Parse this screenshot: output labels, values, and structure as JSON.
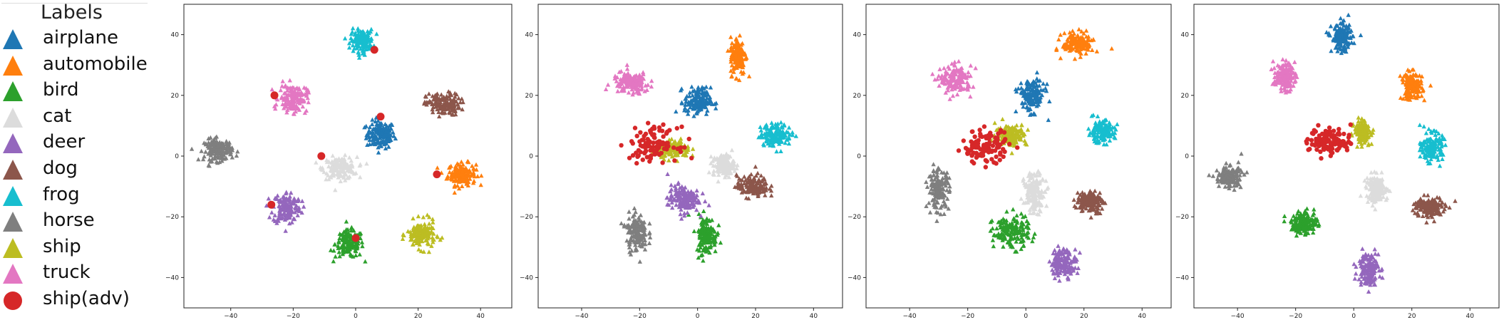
{
  "legend": {
    "title": "Labels",
    "entries": [
      {
        "label": "airplane",
        "color": "#1f77b4",
        "marker": "triangle"
      },
      {
        "label": "automobile",
        "color": "#ff7f0e",
        "marker": "triangle"
      },
      {
        "label": "bird",
        "color": "#2ca02c",
        "marker": "triangle"
      },
      {
        "label": "cat",
        "color": "#dcdcdc",
        "marker": "triangle"
      },
      {
        "label": "deer",
        "color": "#9467bd",
        "marker": "triangle"
      },
      {
        "label": "dog",
        "color": "#8c564b",
        "marker": "triangle"
      },
      {
        "label": "frog",
        "color": "#17becf",
        "marker": "triangle"
      },
      {
        "label": "horse",
        "color": "#7f7f7f",
        "marker": "triangle"
      },
      {
        "label": "ship",
        "color": "#bcbd22",
        "marker": "triangle"
      },
      {
        "label": "truck",
        "color": "#e377c2",
        "marker": "triangle"
      },
      {
        "label": "ship(adv)",
        "color": "#d62728",
        "marker": "circle"
      }
    ]
  },
  "chart_data": [
    {
      "type": "scatter",
      "xlim": [
        -55,
        50
      ],
      "ylim": [
        -50,
        50
      ],
      "xticks": [
        -40,
        -20,
        0,
        20,
        40
      ],
      "xtick_labels": [
        "−40",
        "−20",
        "0",
        "20",
        "40"
      ],
      "yticks": [
        -40,
        -20,
        0,
        20,
        40
      ],
      "ytick_labels": [
        "−40",
        "−20",
        "0",
        "20",
        "40"
      ],
      "clusters": [
        {
          "label": "airplane",
          "center": [
            8,
            7
          ],
          "spread": [
            5,
            5
          ]
        },
        {
          "label": "automobile",
          "center": [
            34,
            -6
          ],
          "spread": [
            5,
            4
          ]
        },
        {
          "label": "bird",
          "center": [
            -2,
            -29
          ],
          "spread": [
            5,
            5
          ]
        },
        {
          "label": "cat",
          "center": [
            -5,
            -4
          ],
          "spread": [
            6,
            4
          ]
        },
        {
          "label": "deer",
          "center": [
            -22,
            -17
          ],
          "spread": [
            5,
            6
          ]
        },
        {
          "label": "dog",
          "center": [
            28,
            17
          ],
          "spread": [
            6,
            4
          ]
        },
        {
          "label": "frog",
          "center": [
            2,
            38
          ],
          "spread": [
            4,
            4
          ]
        },
        {
          "label": "horse",
          "center": [
            -44,
            2
          ],
          "spread": [
            5,
            4
          ]
        },
        {
          "label": "ship",
          "center": [
            21,
            -26
          ],
          "spread": [
            5,
            5
          ]
        },
        {
          "label": "truck",
          "center": [
            -20,
            19
          ],
          "spread": [
            5,
            5
          ]
        },
        {
          "label": "ship(adv)",
          "points": [
            [
              -26,
              20
            ],
            [
              8,
              13
            ],
            [
              -11,
              0
            ],
            [
              26,
              -6
            ],
            [
              -27,
              -16
            ],
            [
              0,
              -27
            ],
            [
              6,
              35
            ]
          ]
        }
      ]
    },
    {
      "type": "scatter",
      "xlim": [
        -55,
        50
      ],
      "ylim": [
        -50,
        50
      ],
      "xticks": [
        -40,
        -20,
        0,
        20,
        40
      ],
      "xtick_labels": [
        "−40",
        "−20",
        "0",
        "20",
        "40"
      ],
      "yticks": [
        -40,
        -20,
        0,
        20,
        40
      ],
      "ytick_labels": [
        "−40",
        "−20",
        "0",
        "20",
        "40"
      ],
      "clusters": [
        {
          "label": "airplane",
          "center": [
            0,
            18
          ],
          "spread": [
            5,
            5
          ]
        },
        {
          "label": "automobile",
          "center": [
            14,
            33
          ],
          "spread": [
            3,
            7
          ]
        },
        {
          "label": "bird",
          "center": [
            3,
            -26
          ],
          "spread": [
            4,
            7
          ]
        },
        {
          "label": "cat",
          "center": [
            9,
            -3
          ],
          "spread": [
            4,
            4
          ]
        },
        {
          "label": "deer",
          "center": [
            -5,
            -14
          ],
          "spread": [
            6,
            5
          ]
        },
        {
          "label": "dog",
          "center": [
            19,
            -10
          ],
          "spread": [
            6,
            4
          ]
        },
        {
          "label": "frog",
          "center": [
            27,
            7
          ],
          "spread": [
            6,
            4
          ]
        },
        {
          "label": "horse",
          "center": [
            -21,
            -25
          ],
          "spread": [
            4,
            7
          ]
        },
        {
          "label": "ship",
          "center": [
            -8,
            2
          ],
          "spread": [
            6,
            3
          ]
        },
        {
          "label": "truck",
          "center": [
            -23,
            24
          ],
          "spread": [
            7,
            4
          ]
        },
        {
          "label": "ship(adv)",
          "center": [
            -15,
            4
          ],
          "spread": [
            9,
            6
          ]
        }
      ]
    },
    {
      "type": "scatter",
      "xlim": [
        -55,
        50
      ],
      "ylim": [
        -50,
        50
      ],
      "xticks": [
        -40,
        -20,
        0,
        20,
        40
      ],
      "xtick_labels": [
        "−40",
        "−20",
        "0",
        "20",
        "40"
      ],
      "yticks": [
        -40,
        -20,
        0,
        20,
        40
      ],
      "ytick_labels": [
        "−40",
        "−20",
        "0",
        "20",
        "40"
      ],
      "clusters": [
        {
          "label": "airplane",
          "center": [
            2,
            20
          ],
          "spread": [
            5,
            6
          ]
        },
        {
          "label": "automobile",
          "center": [
            18,
            37
          ],
          "spread": [
            6,
            4
          ]
        },
        {
          "label": "bird",
          "center": [
            -5,
            -25
          ],
          "spread": [
            7,
            6
          ]
        },
        {
          "label": "cat",
          "center": [
            3,
            -12
          ],
          "spread": [
            4,
            7
          ]
        },
        {
          "label": "deer",
          "center": [
            13,
            -35
          ],
          "spread": [
            5,
            5
          ]
        },
        {
          "label": "dog",
          "center": [
            22,
            -15
          ],
          "spread": [
            5,
            4
          ]
        },
        {
          "label": "frog",
          "center": [
            26,
            8
          ],
          "spread": [
            5,
            4
          ]
        },
        {
          "label": "horse",
          "center": [
            -30,
            -11
          ],
          "spread": [
            4,
            7
          ]
        },
        {
          "label": "ship",
          "center": [
            -5,
            7
          ],
          "spread": [
            6,
            4
          ]
        },
        {
          "label": "truck",
          "center": [
            -24,
            25
          ],
          "spread": [
            6,
            5
          ]
        },
        {
          "label": "ship(adv)",
          "center": [
            -14,
            3
          ],
          "spread": [
            9,
            6
          ]
        }
      ]
    },
    {
      "type": "scatter",
      "xlim": [
        -55,
        50
      ],
      "ylim": [
        -50,
        50
      ],
      "xticks": [
        -40,
        -20,
        0,
        20,
        40
      ],
      "xtick_labels": [
        "−40",
        "−20",
        "0",
        "20",
        "40"
      ],
      "yticks": [
        -40,
        -20,
        0,
        20,
        40
      ],
      "ytick_labels": [
        "−40",
        "−20",
        "0",
        "20",
        "40"
      ],
      "clusters": [
        {
          "label": "airplane",
          "center": [
            -4,
            39
          ],
          "spread": [
            4,
            5
          ]
        },
        {
          "label": "automobile",
          "center": [
            20,
            23
          ],
          "spread": [
            4,
            5
          ]
        },
        {
          "label": "bird",
          "center": [
            -17,
            -22
          ],
          "spread": [
            5,
            4
          ]
        },
        {
          "label": "cat",
          "center": [
            8,
            -11
          ],
          "spread": [
            4,
            5
          ]
        },
        {
          "label": "deer",
          "center": [
            5,
            -37
          ],
          "spread": [
            4,
            6
          ]
        },
        {
          "label": "dog",
          "center": [
            26,
            -17
          ],
          "spread": [
            6,
            4
          ]
        },
        {
          "label": "frog",
          "center": [
            27,
            3
          ],
          "spread": [
            4,
            5
          ]
        },
        {
          "label": "horse",
          "center": [
            -43,
            -7
          ],
          "spread": [
            5,
            4
          ]
        },
        {
          "label": "ship",
          "center": [
            3,
            8
          ],
          "spread": [
            3,
            4
          ]
        },
        {
          "label": "truck",
          "center": [
            -24,
            26
          ],
          "spread": [
            4,
            5
          ]
        },
        {
          "label": "ship(adv)",
          "center": [
            -8,
            5
          ],
          "spread": [
            8,
            5
          ]
        }
      ]
    }
  ]
}
